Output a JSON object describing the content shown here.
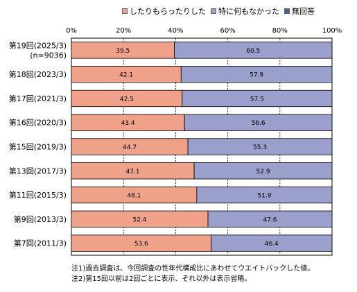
{
  "chart_data": {
    "type": "bar",
    "orientation": "horizontal",
    "stacked": true,
    "categories": [
      [
        "第19回(2025/3)",
        "(n=9036)"
      ],
      [
        "第18回(2023/3)"
      ],
      [
        "第17回(2021/3)"
      ],
      [
        "第16回(2020/3)"
      ],
      [
        "第15回(2019/3)"
      ],
      [
        "第13回(2017/3)"
      ],
      [
        "第11回(2015/3)"
      ],
      [
        "第9回(2013/3)"
      ],
      [
        "第7回(2011/3)"
      ]
    ],
    "series": [
      {
        "name": "したりもらったりした",
        "color": "#f0a18a",
        "values": [
          39.5,
          42.1,
          42.5,
          43.4,
          44.7,
          47.1,
          48.1,
          52.4,
          53.6
        ]
      },
      {
        "name": "特に何もなかった",
        "color": "#9a9fcb",
        "values": [
          60.5,
          57.9,
          57.5,
          56.6,
          55.3,
          52.9,
          51.9,
          47.6,
          46.4
        ]
      },
      {
        "name": "無回答",
        "color": "#4f5a9c",
        "values": [
          0,
          0,
          0,
          0,
          0,
          0,
          0,
          0,
          0
        ]
      }
    ],
    "x_ticks": [
      "0%",
      "20%",
      "40%",
      "60%",
      "80%",
      "100%"
    ],
    "xlim": [
      0,
      100
    ],
    "grid": true,
    "legend_position": "top"
  },
  "notes": [
    "注1)過去調査は、今回調査の性年代構成比にあわせてウエイトバックした値。",
    "注2)第15回以前は2回ごとに表示、それ以外は表示省略。"
  ]
}
